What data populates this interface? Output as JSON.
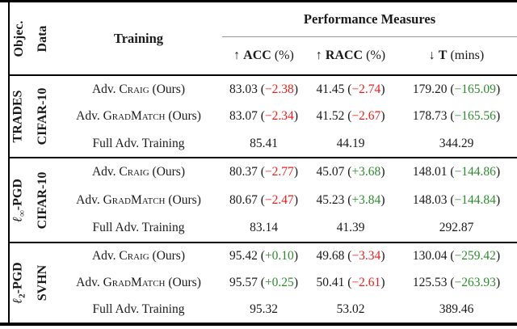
{
  "colors": {
    "negative_red": "#ee1c1c",
    "positive_green": "#2e8b2e",
    "rule_black": "#000000",
    "cmidrule_gray": "#999999"
  },
  "header": {
    "objective_label": "Objec.",
    "data_label": "Data",
    "training_label": "Training",
    "performance_label": "Performance Measures",
    "measures": [
      {
        "arrow": "↑",
        "name": "ACC",
        "unit": "(%)"
      },
      {
        "arrow": "↑",
        "name": "RACC",
        "unit": "(%)"
      },
      {
        "arrow": "↓",
        "name": "T",
        "unit": "(mins)"
      }
    ]
  },
  "groups": [
    {
      "objective": {
        "ell": "",
        "sub": "",
        "name": "TRADES"
      },
      "dataset": "CIFAR-10",
      "rows": [
        {
          "training_pre": "Adv. ",
          "training_sc": "Craig",
          "training_post": " (Ours)",
          "cells": [
            {
              "value": "83.03",
              "open": " (",
              "delta": "−2.38",
              "close": ")",
              "delta_color": "red"
            },
            {
              "value": "41.45",
              "open": " (",
              "delta": "−2.74",
              "close": ")",
              "delta_color": "red"
            },
            {
              "value": "179.20",
              "open": " (",
              "delta": "−165.09",
              "close": ")",
              "delta_color": "green"
            }
          ]
        },
        {
          "training_pre": "Adv. ",
          "training_sc": "GradMatch",
          "training_post": " (Ours)",
          "cells": [
            {
              "value": "83.07",
              "open": " (",
              "delta": "−2.34",
              "close": ")",
              "delta_color": "red"
            },
            {
              "value": "41.52",
              "open": " (",
              "delta": "−2.67",
              "close": ")",
              "delta_color": "red"
            },
            {
              "value": "178.73",
              "open": " (",
              "delta": "−165.56",
              "close": ")",
              "delta_color": "green"
            }
          ]
        },
        {
          "training_pre": "Full Adv. Training",
          "training_sc": "",
          "training_post": "",
          "cells": [
            {
              "value": "85.41",
              "open": "",
              "delta": "",
              "close": ""
            },
            {
              "value": "44.19",
              "open": "",
              "delta": "",
              "close": ""
            },
            {
              "value": "344.29",
              "open": "",
              "delta": "",
              "close": ""
            }
          ]
        }
      ]
    },
    {
      "objective": {
        "ell": "ℓ",
        "sub": "∞",
        "name": "-PGD"
      },
      "dataset": "CIFAR-10",
      "rows": [
        {
          "training_pre": "Adv. ",
          "training_sc": "Craig",
          "training_post": " (Ours)",
          "cells": [
            {
              "value": "80.37",
              "open": " (",
              "delta": "−2.77",
              "close": ")",
              "delta_color": "red"
            },
            {
              "value": "45.07",
              "open": " (",
              "delta": "+3.68",
              "close": ")",
              "delta_color": "green"
            },
            {
              "value": "148.01",
              "open": " (",
              "delta": "−144.86",
              "close": ")",
              "delta_color": "green"
            }
          ]
        },
        {
          "training_pre": "Adv. ",
          "training_sc": "GradMatch",
          "training_post": " (Ours)",
          "cells": [
            {
              "value": "80.67",
              "open": " (",
              "delta": "−2.47",
              "close": ")",
              "delta_color": "red"
            },
            {
              "value": "45.23",
              "open": " (",
              "delta": "+3.84",
              "close": ")",
              "delta_color": "green"
            },
            {
              "value": "148.03",
              "open": " (",
              "delta": "−144.84",
              "close": ")",
              "delta_color": "green"
            }
          ]
        },
        {
          "training_pre": "Full Adv. Training",
          "training_sc": "",
          "training_post": "",
          "cells": [
            {
              "value": "83.14",
              "open": "",
              "delta": "",
              "close": ""
            },
            {
              "value": "41.39",
              "open": "",
              "delta": "",
              "close": ""
            },
            {
              "value": "292.87",
              "open": "",
              "delta": "",
              "close": ""
            }
          ]
        }
      ]
    },
    {
      "objective": {
        "ell": "ℓ",
        "sub": "2",
        "name": "-PGD"
      },
      "dataset": "SVHN",
      "rows": [
        {
          "training_pre": "Adv. ",
          "training_sc": "Craig",
          "training_post": " (Ours)",
          "cells": [
            {
              "value": "95.42",
              "open": " (",
              "delta": "+0.10",
              "close": ")",
              "delta_color": "green"
            },
            {
              "value": "49.68",
              "open": " (",
              "delta": "−3.34",
              "close": ")",
              "delta_color": "red"
            },
            {
              "value": "130.04",
              "open": " (",
              "delta": "−259.42",
              "close": ")",
              "delta_color": "green"
            }
          ]
        },
        {
          "training_pre": "Adv. ",
          "training_sc": "GradMatch",
          "training_post": " (Ours)",
          "cells": [
            {
              "value": "95.57",
              "open": " (",
              "delta": "+0.25",
              "close": ")",
              "delta_color": "green"
            },
            {
              "value": "50.41",
              "open": " (",
              "delta": "−2.61",
              "close": ")",
              "delta_color": "red"
            },
            {
              "value": "125.53",
              "open": " (",
              "delta": "−263.93",
              "close": ")",
              "delta_color": "green"
            }
          ]
        },
        {
          "training_pre": "Full Adv. Training",
          "training_sc": "",
          "training_post": "",
          "cells": [
            {
              "value": "95.32",
              "open": "",
              "delta": "",
              "close": ""
            },
            {
              "value": "53.02",
              "open": "",
              "delta": "",
              "close": ""
            },
            {
              "value": "389.46",
              "open": "",
              "delta": "",
              "close": ""
            }
          ]
        }
      ]
    }
  ]
}
